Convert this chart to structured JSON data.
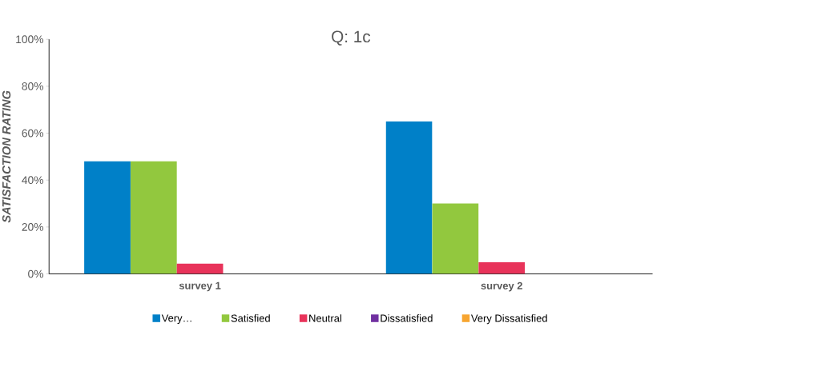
{
  "chart_data": {
    "type": "bar",
    "title": "Q: 1c",
    "ylabel": "SATISFACTION RATING",
    "categories": [
      "survey 1",
      "survey 2"
    ],
    "series": [
      {
        "name": "Very…",
        "color": "#0080c8",
        "values": [
          48,
          65
        ]
      },
      {
        "name": "Satisfied",
        "color": "#92c83e",
        "values": [
          48,
          30
        ]
      },
      {
        "name": "Neutral",
        "color": "#e8335a",
        "values": [
          4.4,
          5
        ]
      },
      {
        "name": "Dissatisfied",
        "color": "#7030a0",
        "values": [
          0,
          0
        ]
      },
      {
        "name": "Very Dissatisfied",
        "color": "#f7a530",
        "values": [
          0,
          0
        ]
      }
    ],
    "ylim": [
      0,
      100
    ],
    "yticks": [
      {
        "value": 0,
        "label": "0%"
      },
      {
        "value": 20,
        "label": "20%"
      },
      {
        "value": 40,
        "label": "40%"
      },
      {
        "value": 60,
        "label": "60%"
      },
      {
        "value": 80,
        "label": "80%"
      },
      {
        "value": 100,
        "label": "100%"
      }
    ],
    "legend": "bottom",
    "grid": false
  }
}
